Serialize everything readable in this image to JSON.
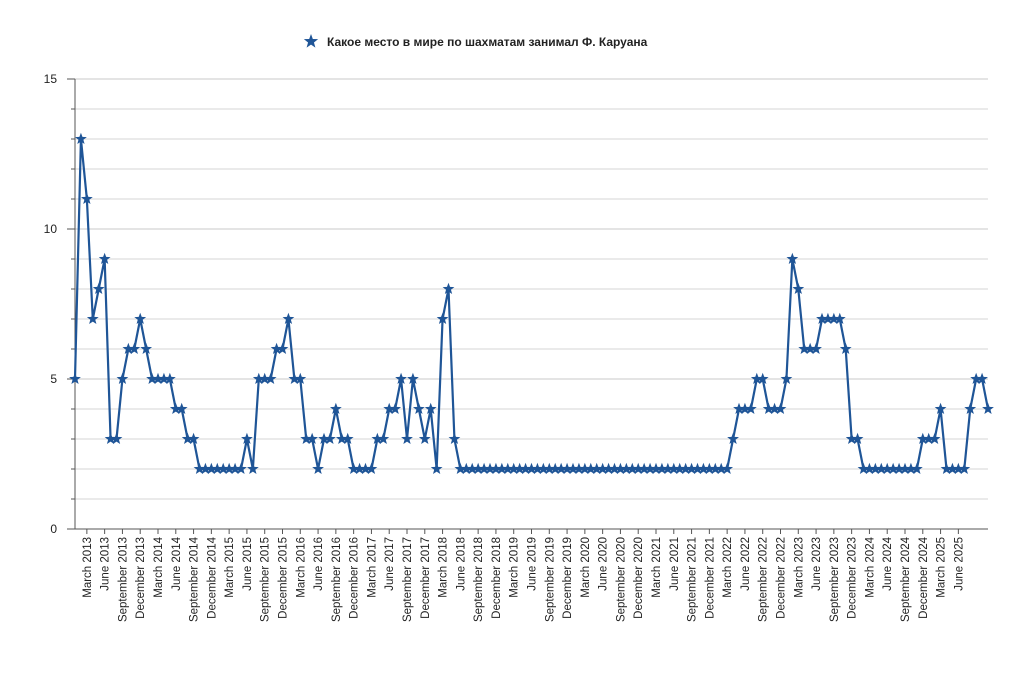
{
  "chart_data": {
    "type": "line",
    "legend": {
      "position": "top-center",
      "marker": "star",
      "entries": [
        "Какое место в мире по шахматам занимал Ф. Каруана"
      ]
    },
    "colors": {
      "series": "#1f5597",
      "grid": "#d6d6d6",
      "axis": "#555555",
      "text": "#222222"
    },
    "grid": true,
    "ylim": [
      0,
      15
    ],
    "y_ticks": [
      0,
      5,
      10,
      15
    ],
    "y_minor_step": 1,
    "x_start": "2013-01",
    "x_tick_labels": [
      "March 2013",
      "June 2013",
      "September 2013",
      "December 2013",
      "March 2014",
      "June 2014",
      "September 2014",
      "December 2014",
      "March 2015",
      "June 2015",
      "September 2015",
      "December 2015",
      "March 2016",
      "June 2016",
      "September 2016",
      "December 2016",
      "March 2017",
      "June 2017",
      "September 2017",
      "December 2017",
      "March 2018",
      "June 2018",
      "September 2018",
      "December 2018",
      "March 2019",
      "June 2019",
      "September 2019",
      "December 2019",
      "March 2020",
      "June 2020",
      "September 2020",
      "December 2020",
      "March 2021",
      "June 2021",
      "September 2021",
      "December 2021",
      "March 2022",
      "June 2022",
      "September 2022",
      "December 2022",
      "March 2023",
      "June 2023",
      "September 2023",
      "December 2023",
      "March 2024",
      "June 2024",
      "September 2024",
      "December 2024",
      "March 2025",
      "June 2025"
    ],
    "series": [
      {
        "name": "Какое место в мире по шахматам занимал Ф. Каруана",
        "values": [
          5,
          13,
          11,
          7,
          8,
          9,
          3,
          3,
          5,
          6,
          6,
          7,
          6,
          5,
          5,
          5,
          5,
          4,
          4,
          3,
          3,
          2,
          2,
          2,
          2,
          2,
          2,
          2,
          2,
          3,
          2,
          5,
          5,
          5,
          6,
          6,
          7,
          5,
          5,
          3,
          3,
          2,
          3,
          3,
          4,
          3,
          3,
          2,
          2,
          2,
          2,
          3,
          3,
          4,
          4,
          5,
          3,
          5,
          4,
          3,
          4,
          2,
          7,
          8,
          3,
          2,
          2,
          2,
          2,
          2,
          2,
          2,
          2,
          2,
          2,
          2,
          2,
          2,
          2,
          2,
          2,
          2,
          2,
          2,
          2,
          2,
          2,
          2,
          2,
          2,
          2,
          2,
          2,
          2,
          2,
          2,
          2,
          2,
          2,
          2,
          2,
          2,
          2,
          2,
          2,
          2,
          2,
          2,
          2,
          2,
          2,
          3,
          4,
          4,
          4,
          5,
          5,
          4,
          4,
          4,
          5,
          9,
          8,
          6,
          6,
          6,
          7,
          7,
          7,
          7,
          6,
          3,
          3,
          2,
          2,
          2,
          2,
          2,
          2,
          2,
          2,
          2,
          2,
          3,
          3,
          3,
          4,
          2,
          2,
          2,
          2,
          4,
          5,
          5,
          4
        ]
      }
    ]
  }
}
